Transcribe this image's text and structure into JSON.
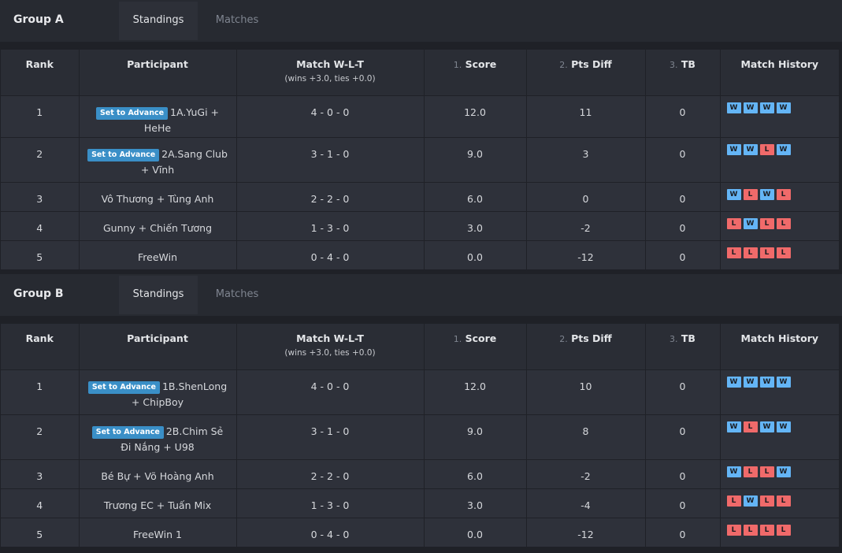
{
  "colors": {
    "background": "#1f2127",
    "header_bg": "#272a31",
    "row_bg": "#2e313a",
    "advance_button": "#3a8fc7",
    "win_badge": "#64b5f6",
    "loss_badge": "#f06a6a"
  },
  "columns": {
    "rank": "Rank",
    "participant": "Participant",
    "wlt": "Match W-L-T",
    "wlt_sub": "(wins +3.0, ties +0.0)",
    "score_num": "1.",
    "score": "Score",
    "ptsdiff_num": "2.",
    "ptsdiff": "Pts Diff",
    "tb_num": "3.",
    "tb": "TB",
    "history": "Match History"
  },
  "advance_label": "Set to Advance",
  "groups": [
    {
      "title": "Group A",
      "tabs": [
        "Standings",
        "Matches"
      ],
      "rows": [
        {
          "rank": "1",
          "advance": true,
          "participant": "1A.YuGi + HeHe",
          "wlt": "4 - 0 - 0",
          "score": "12.0",
          "ptsdiff": "11",
          "tb": "0",
          "history": [
            "W",
            "W",
            "W",
            "W"
          ]
        },
        {
          "rank": "2",
          "advance": true,
          "participant": "2A.Sang Club + Vĩnh",
          "wlt": "3 - 1 - 0",
          "score": "9.0",
          "ptsdiff": "3",
          "tb": "0",
          "history": [
            "W",
            "W",
            "L",
            "W"
          ]
        },
        {
          "rank": "3",
          "advance": false,
          "participant": "Vô Thương + Tùng Anh",
          "wlt": "2 - 2 - 0",
          "score": "6.0",
          "ptsdiff": "0",
          "tb": "0",
          "history": [
            "W",
            "L",
            "W",
            "L"
          ]
        },
        {
          "rank": "4",
          "advance": false,
          "participant": "Gunny + Chiến Tương",
          "wlt": "1 - 3 - 0",
          "score": "3.0",
          "ptsdiff": "-2",
          "tb": "0",
          "history": [
            "L",
            "W",
            "L",
            "L"
          ]
        },
        {
          "rank": "5",
          "advance": false,
          "participant": "FreeWin",
          "wlt": "0 - 4 - 0",
          "score": "0.0",
          "ptsdiff": "-12",
          "tb": "0",
          "history": [
            "L",
            "L",
            "L",
            "L"
          ]
        }
      ]
    },
    {
      "title": "Group B",
      "tabs": [
        "Standings",
        "Matches"
      ],
      "rows": [
        {
          "rank": "1",
          "advance": true,
          "participant": "1B.ShenLong + ChipBoy",
          "wlt": "4 - 0 - 0",
          "score": "12.0",
          "ptsdiff": "10",
          "tb": "0",
          "history": [
            "W",
            "W",
            "W",
            "W"
          ]
        },
        {
          "rank": "2",
          "advance": true,
          "participant": "2B.Chim Sẻ Đi Nắng + U98",
          "wlt": "3 - 1 - 0",
          "score": "9.0",
          "ptsdiff": "8",
          "tb": "0",
          "history": [
            "W",
            "L",
            "W",
            "W"
          ]
        },
        {
          "rank": "3",
          "advance": false,
          "participant": "Bé Bự + Võ Hoàng Anh",
          "wlt": "2 - 2 - 0",
          "score": "6.0",
          "ptsdiff": "-2",
          "tb": "0",
          "history": [
            "W",
            "L",
            "L",
            "W"
          ]
        },
        {
          "rank": "4",
          "advance": false,
          "participant": "Trương EC + Tuấn Mix",
          "wlt": "1 - 3 - 0",
          "score": "3.0",
          "ptsdiff": "-4",
          "tb": "0",
          "history": [
            "L",
            "W",
            "L",
            "L"
          ]
        },
        {
          "rank": "5",
          "advance": false,
          "participant": "FreeWin 1",
          "wlt": "0 - 4 - 0",
          "score": "0.0",
          "ptsdiff": "-12",
          "tb": "0",
          "history": [
            "L",
            "L",
            "L",
            "L"
          ]
        }
      ]
    }
  ]
}
